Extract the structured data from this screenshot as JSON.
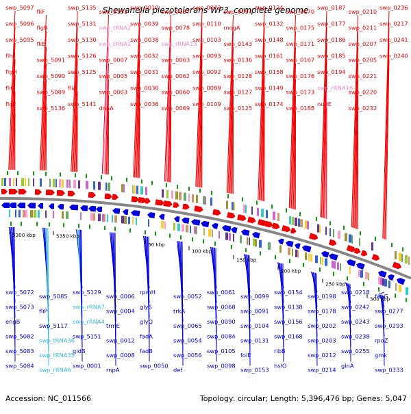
{
  "title": "Shewanella piezotolerans WP3, complete genome",
  "accession": "Accession: NC_011566",
  "topology": "Topology: circular; Length: 5,396,476 bp; Genes: 5,047",
  "colors": {
    "plus_gene": "#ee0000",
    "minus_gene": "#0000dd",
    "plus_rna": "#ee88cc",
    "minus_rna": "#33bbdd",
    "backbone": "#888888",
    "tick": "#119911"
  },
  "tick_labels": [
    "5300 kbp",
    "5350 kbp",
    "50 kbp",
    "100 kbp",
    "150 kbp",
    "200 kbp",
    "250 kbp",
    "300 kbp"
  ],
  "plus_labels": [
    {
      "text": "swp_5097",
      "kind": "gene"
    },
    {
      "text": "swp_5096",
      "kind": "gene"
    },
    {
      "text": "swp_5095",
      "kind": "gene"
    },
    {
      "text": "flhF",
      "kind": "gene"
    },
    {
      "text": "flgH",
      "kind": "gene"
    },
    {
      "text": "fliG",
      "kind": "gene"
    },
    {
      "text": "flgE",
      "kind": "gene"
    },
    {
      "text": "fliF",
      "kind": "gene"
    },
    {
      "text": "flgB",
      "kind": "gene"
    },
    {
      "text": "fliE",
      "kind": "gene"
    },
    {
      "text": "swp_5091",
      "kind": "gene"
    },
    {
      "text": "swp_5090",
      "kind": "gene"
    },
    {
      "text": "swp_5089",
      "kind": "gene"
    },
    {
      "text": "swp_5136",
      "kind": "gene"
    },
    {
      "text": "swp_5135",
      "kind": "gene"
    },
    {
      "text": "swp_5131",
      "kind": "gene"
    },
    {
      "text": "swp_5130",
      "kind": "gene"
    },
    {
      "text": "swp_5126",
      "kind": "gene"
    },
    {
      "text": "swp_5125",
      "kind": "gene"
    },
    {
      "text": "fliA",
      "kind": "gene"
    },
    {
      "text": "swp_5141",
      "kind": "gene"
    },
    {
      "text": "swp_5153",
      "kind": "gene"
    },
    {
      "text": "swp_tRNA2",
      "kind": "rna"
    },
    {
      "text": "swp_tRNA1",
      "kind": "rna"
    },
    {
      "text": "swp_0007",
      "kind": "gene"
    },
    {
      "text": "swp_0005",
      "kind": "gene"
    },
    {
      "text": "swp_0003",
      "kind": "gene"
    },
    {
      "text": "dnaA",
      "kind": "gene"
    },
    {
      "text": "swp_0010",
      "kind": "gene"
    },
    {
      "text": "swp_0039",
      "kind": "gene"
    },
    {
      "text": "swp_0038",
      "kind": "gene"
    },
    {
      "text": "swp_0032",
      "kind": "gene"
    },
    {
      "text": "swp_0031",
      "kind": "gene"
    },
    {
      "text": "swp_0030",
      "kind": "gene"
    },
    {
      "text": "swp_0036",
      "kind": "gene"
    },
    {
      "text": "swp_0037",
      "kind": "gene"
    },
    {
      "text": "swp_0078",
      "kind": "gene"
    },
    {
      "text": "swp_rRNA13",
      "kind": "rna"
    },
    {
      "text": "swp_0063",
      "kind": "gene"
    },
    {
      "text": "swp_0062",
      "kind": "gene"
    },
    {
      "text": "swp_0060",
      "kind": "gene"
    },
    {
      "text": "swp_0069",
      "kind": "gene"
    },
    {
      "text": "swp_0072",
      "kind": "gene"
    },
    {
      "text": "swp_0110",
      "kind": "gene"
    },
    {
      "text": "swp_0103",
      "kind": "gene"
    },
    {
      "text": "swp_0093",
      "kind": "gene"
    },
    {
      "text": "swp_0092",
      "kind": "gene"
    },
    {
      "text": "swp_0089",
      "kind": "gene"
    },
    {
      "text": "swp_0109",
      "kind": "gene"
    },
    {
      "text": "swp_0097",
      "kind": "gene"
    },
    {
      "text": "mogA",
      "kind": "gene"
    },
    {
      "text": "swp_0143",
      "kind": "gene"
    },
    {
      "text": "swp_0136",
      "kind": "gene"
    },
    {
      "text": "swp_0128",
      "kind": "gene"
    },
    {
      "text": "swp_0127",
      "kind": "gene"
    },
    {
      "text": "swp_0125",
      "kind": "gene"
    },
    {
      "text": "swp_0134",
      "kind": "gene"
    },
    {
      "text": "swp_0132",
      "kind": "gene"
    },
    {
      "text": "swp_0148",
      "kind": "gene"
    },
    {
      "text": "swp_0161",
      "kind": "gene"
    },
    {
      "text": "swp_0158",
      "kind": "gene"
    },
    {
      "text": "swp_0149",
      "kind": "gene"
    },
    {
      "text": "swp_0174",
      "kind": "gene"
    },
    {
      "text": "swp_0170",
      "kind": "gene"
    },
    {
      "text": "swp_0175",
      "kind": "gene"
    },
    {
      "text": "swp_0171",
      "kind": "gene"
    },
    {
      "text": "swp_0167",
      "kind": "gene"
    },
    {
      "text": "swp_0176",
      "kind": "gene"
    },
    {
      "text": "swp_0173",
      "kind": "gene"
    },
    {
      "text": "swp_0188",
      "kind": "gene"
    },
    {
      "text": "swp_0187",
      "kind": "gene"
    },
    {
      "text": "swp_0177",
      "kind": "gene"
    },
    {
      "text": "swp_0186",
      "kind": "gene"
    },
    {
      "text": "swp_0185",
      "kind": "gene"
    },
    {
      "text": "swp_0194",
      "kind": "gene"
    },
    {
      "text": "swp_rRNA16",
      "kind": "rna"
    },
    {
      "text": "nudE",
      "kind": "gene"
    },
    {
      "text": "swp_0210",
      "kind": "gene"
    },
    {
      "text": "swp_0211",
      "kind": "gene"
    },
    {
      "text": "swp_0207",
      "kind": "gene"
    },
    {
      "text": "swp_0205",
      "kind": "gene"
    },
    {
      "text": "swp_0221",
      "kind": "gene"
    },
    {
      "text": "swp_0220",
      "kind": "gene"
    },
    {
      "text": "swp_0232",
      "kind": "gene"
    },
    {
      "text": "swp_0236",
      "kind": "gene"
    },
    {
      "text": "swp_0217",
      "kind": "gene"
    },
    {
      "text": "swp_0241",
      "kind": "gene"
    },
    {
      "text": "swp_0240",
      "kind": "gene"
    }
  ],
  "minus_labels": [
    {
      "text": "swp_5072",
      "kind": "gene"
    },
    {
      "text": "swp_5073",
      "kind": "gene"
    },
    {
      "text": "engB",
      "kind": "gene"
    },
    {
      "text": "swp_5082",
      "kind": "gene"
    },
    {
      "text": "swp_5083",
      "kind": "gene"
    },
    {
      "text": "swp_5084",
      "kind": "gene"
    },
    {
      "text": "swp_5085",
      "kind": "gene"
    },
    {
      "text": "fliP",
      "kind": "gene"
    },
    {
      "text": "swp_5117",
      "kind": "gene"
    },
    {
      "text": "swp_tRNA36",
      "kind": "rna"
    },
    {
      "text": "swp_tRNA35",
      "kind": "rna"
    },
    {
      "text": "swp_rRNA6",
      "kind": "rna"
    },
    {
      "text": "swp_5129",
      "kind": "gene"
    },
    {
      "text": "swp_rRNA7",
      "kind": "rna"
    },
    {
      "text": "swp_rRNA4",
      "kind": "rna"
    },
    {
      "text": "swp_5151",
      "kind": "gene"
    },
    {
      "text": "gidB",
      "kind": "gene"
    },
    {
      "text": "swp_0001",
      "kind": "gene"
    },
    {
      "text": "swp_0006",
      "kind": "gene"
    },
    {
      "text": "swp_0004",
      "kind": "gene"
    },
    {
      "text": "trmE",
      "kind": "gene"
    },
    {
      "text": "swp_0012",
      "kind": "gene"
    },
    {
      "text": "swp_0008",
      "kind": "gene"
    },
    {
      "text": "rnpA",
      "kind": "gene"
    },
    {
      "text": "rpmH",
      "kind": "gene"
    },
    {
      "text": "glyS",
      "kind": "gene"
    },
    {
      "text": "glyQ",
      "kind": "gene"
    },
    {
      "text": "fadA",
      "kind": "gene"
    },
    {
      "text": "fadB",
      "kind": "gene"
    },
    {
      "text": "swp_0050",
      "kind": "gene"
    },
    {
      "text": "swp_0052",
      "kind": "gene"
    },
    {
      "text": "trkA",
      "kind": "gene"
    },
    {
      "text": "swp_0065",
      "kind": "gene"
    },
    {
      "text": "swp_0054",
      "kind": "gene"
    },
    {
      "text": "swp_0056",
      "kind": "gene"
    },
    {
      "text": "def",
      "kind": "gene"
    },
    {
      "text": "swp_0061",
      "kind": "gene"
    },
    {
      "text": "swp_0068",
      "kind": "gene"
    },
    {
      "text": "swp_0090",
      "kind": "gene"
    },
    {
      "text": "swp_0084",
      "kind": "gene"
    },
    {
      "text": "swp_0105",
      "kind": "gene"
    },
    {
      "text": "swp_0098",
      "kind": "gene"
    },
    {
      "text": "swp_0099",
      "kind": "gene"
    },
    {
      "text": "swp_0091",
      "kind": "gene"
    },
    {
      "text": "swp_0104",
      "kind": "gene"
    },
    {
      "text": "swp_0131",
      "kind": "gene"
    },
    {
      "text": "folE",
      "kind": "gene"
    },
    {
      "text": "swp_0153",
      "kind": "gene"
    },
    {
      "text": "swp_0154",
      "kind": "gene"
    },
    {
      "text": "swp_0138",
      "kind": "gene"
    },
    {
      "text": "swp_0156",
      "kind": "gene"
    },
    {
      "text": "swp_0168",
      "kind": "gene"
    },
    {
      "text": "ribB",
      "kind": "gene"
    },
    {
      "text": "hslO",
      "kind": "gene"
    },
    {
      "text": "swp_0198",
      "kind": "gene"
    },
    {
      "text": "swp_0178",
      "kind": "gene"
    },
    {
      "text": "swp_0202",
      "kind": "gene"
    },
    {
      "text": "swp_0203",
      "kind": "gene"
    },
    {
      "text": "swp_0212",
      "kind": "gene"
    },
    {
      "text": "swp_0214",
      "kind": "gene"
    },
    {
      "text": "swp_0218",
      "kind": "gene"
    },
    {
      "text": "swp_0242",
      "kind": "gene"
    },
    {
      "text": "swp_0243",
      "kind": "gene"
    },
    {
      "text": "swp_0238",
      "kind": "gene"
    },
    {
      "text": "swp_0255",
      "kind": "gene"
    },
    {
      "text": "glnA",
      "kind": "gene"
    },
    {
      "text": "fabG",
      "kind": "gene"
    },
    {
      "text": "swp_0277",
      "kind": "gene"
    },
    {
      "text": "swp_0293",
      "kind": "gene"
    },
    {
      "text": "rpoZ",
      "kind": "gene"
    },
    {
      "text": "gmk",
      "kind": "gene"
    },
    {
      "text": "swp_0333",
      "kind": "gene"
    }
  ]
}
